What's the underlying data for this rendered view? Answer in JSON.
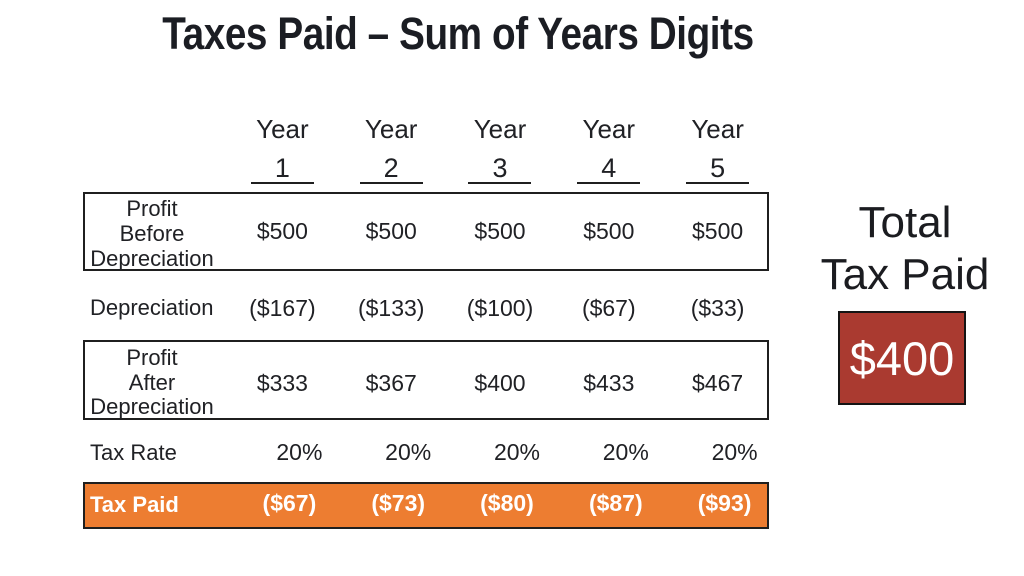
{
  "slide": {
    "title": "Taxes Paid – Sum of Years Digits"
  },
  "table": {
    "year_label": "Year",
    "year_numbers": [
      "1",
      "2",
      "3",
      "4",
      "5"
    ],
    "rows": [
      {
        "label": "Profit Before Depreciation",
        "label_lines": [
          "Profit",
          "Before",
          "Depreciation"
        ],
        "values": [
          "$500",
          "$500",
          "$500",
          "$500",
          "$500"
        ],
        "boxed": true
      },
      {
        "label": "Depreciation",
        "values": [
          "($167)",
          "($133)",
          "($100)",
          "($67)",
          "($33)"
        ],
        "boxed": false
      },
      {
        "label": "Profit After Depreciation",
        "label_lines": [
          "Profit",
          "After",
          "Depreciation"
        ],
        "values": [
          "$333",
          "$367",
          "$400",
          "$433",
          "$467"
        ],
        "boxed": true
      },
      {
        "label": "Tax Rate",
        "values": [
          "20%",
          "20%",
          "20%",
          "20%",
          "20%"
        ],
        "boxed": false
      },
      {
        "label": "Tax Paid",
        "values": [
          "($67)",
          "($73)",
          "($80)",
          "($87)",
          "($93)"
        ],
        "highlighted": true
      }
    ]
  },
  "total": {
    "line1": "Total",
    "line2": "Tax Paid",
    "value": "$400"
  },
  "colors": {
    "highlight_orange": "#ED7D31",
    "total_red": "#AA3A30",
    "border_dark": "#1f1f1f",
    "text_dark": "#202125",
    "text_white": "#ffffff"
  },
  "chart_data": {
    "type": "table",
    "title": "Taxes Paid – Sum of Years Digits",
    "columns": [
      "Year 1",
      "Year 2",
      "Year 3",
      "Year 4",
      "Year 5"
    ],
    "rows": [
      {
        "label": "Profit Before Depreciation",
        "values": [
          500,
          500,
          500,
          500,
          500
        ]
      },
      {
        "label": "Depreciation",
        "values": [
          -167,
          -133,
          -100,
          -67,
          -33
        ]
      },
      {
        "label": "Profit After Depreciation",
        "values": [
          333,
          367,
          400,
          433,
          467
        ]
      },
      {
        "label": "Tax Rate",
        "values": [
          0.2,
          0.2,
          0.2,
          0.2,
          0.2
        ]
      },
      {
        "label": "Tax Paid",
        "values": [
          -67,
          -73,
          -80,
          -87,
          -93
        ]
      }
    ],
    "total": {
      "label": "Total Tax Paid",
      "value": 400
    }
  }
}
